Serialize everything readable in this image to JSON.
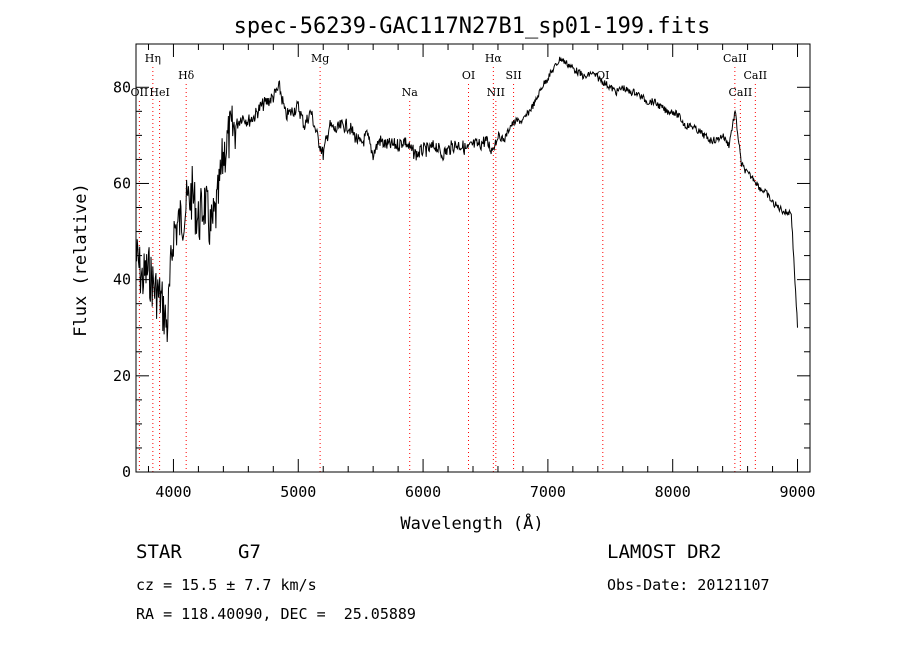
{
  "chart_data": {
    "type": "line",
    "title": "spec-56239-GAC117N27B1_sp01-199.fits",
    "xlabel": "Wavelength (Å)",
    "ylabel": "Flux (relative)",
    "xlim": [
      3700,
      9100
    ],
    "ylim": [
      0,
      89
    ],
    "xticks": [
      4000,
      5000,
      6000,
      7000,
      8000,
      9000
    ],
    "yticks": [
      0,
      20,
      40,
      60,
      80
    ],
    "grid": false,
    "legend": "none",
    "line_color": "#000000",
    "marker_color": "#ff0000",
    "series": [
      {
        "x": [
          3700,
          3750,
          3800,
          3850,
          3900,
          3950,
          4000,
          4050,
          4100,
          4150,
          4200,
          4250,
          4300,
          4350,
          4400,
          4450,
          4500,
          4550,
          4600,
          4650,
          4700,
          4750,
          4800,
          4850,
          4900,
          4950,
          5000,
          5050,
          5100,
          5150,
          5200,
          5250,
          5300,
          5350,
          5400,
          5450,
          5500,
          5550,
          5600,
          5650,
          5700,
          5750,
          5800,
          5850,
          5900,
          5950,
          6000,
          6050,
          6100,
          6150,
          6200,
          6250,
          6300,
          6350,
          6400,
          6450,
          6500,
          6550,
          6600,
          6650,
          6700,
          6750,
          6800,
          6850,
          6900,
          6950,
          7000,
          7050,
          7100,
          7150,
          7200,
          7250,
          7300,
          7350,
          7400,
          7450,
          7500,
          7550,
          7600,
          7650,
          7700,
          7750,
          7800,
          7850,
          7900,
          7950,
          8000,
          8050,
          8100,
          8150,
          8200,
          8250,
          8300,
          8350,
          8400,
          8450,
          8500,
          8550,
          8600,
          8650,
          8700,
          8750,
          8800,
          8850,
          8900,
          8950,
          9000
        ],
        "values": [
          45,
          40,
          42,
          38,
          36,
          30,
          50,
          52,
          55,
          58,
          52,
          56,
          50,
          55,
          66,
          70,
          72,
          74,
          73,
          74,
          76,
          77,
          78,
          80,
          74,
          75,
          76,
          72,
          75,
          70,
          66,
          72,
          71,
          72,
          72,
          70,
          68,
          70,
          66,
          69,
          68,
          68,
          68,
          69,
          67,
          66,
          67,
          67,
          68,
          66,
          67,
          68,
          68,
          67,
          68,
          68,
          69,
          67,
          70,
          69,
          72,
          73,
          73,
          75,
          77,
          80,
          82,
          84,
          86,
          85,
          84,
          83,
          82,
          83,
          82,
          81,
          80,
          79,
          80,
          79,
          79,
          78,
          77,
          77,
          76,
          75,
          75,
          74,
          72,
          72,
          71,
          70,
          69,
          69,
          70,
          68,
          75,
          64,
          62,
          61,
          59,
          58,
          56,
          55,
          54,
          54,
          30
        ]
      }
    ],
    "lines": [
      {
        "label": "OII",
        "x": 3727,
        "pos": "low"
      },
      {
        "label": "Hη",
        "x": 3835,
        "pos": "top"
      },
      {
        "label": "HeI",
        "x": 3889,
        "pos": "low"
      },
      {
        "label": "Hδ",
        "x": 4102,
        "pos": "mid"
      },
      {
        "label": "Mg",
        "x": 5175,
        "pos": "top"
      },
      {
        "label": "Na",
        "x": 5893,
        "pos": "low"
      },
      {
        "label": "OI",
        "x": 6364,
        "pos": "mid"
      },
      {
        "label": "Hα",
        "x": 6563,
        "pos": "top"
      },
      {
        "label": "NII",
        "x": 6583,
        "pos": "low"
      },
      {
        "label": "SII",
        "x": 6725,
        "pos": "mid"
      },
      {
        "label": "OI",
        "x": 7440,
        "pos": "mid"
      },
      {
        "label": "CaII",
        "x": 8498,
        "pos": "top"
      },
      {
        "label": "CaII",
        "x": 8542,
        "pos": "low"
      },
      {
        "label": "CaII",
        "x": 8662,
        "pos": "mid"
      }
    ]
  },
  "info": {
    "object_class": "STAR",
    "subclass": "G7",
    "survey": "LAMOST DR2",
    "cz": "cz = 15.5 ± 7.7 km/s",
    "obs_date": "Obs-Date: 20121107",
    "radec": "RA = 118.40090, DEC =  25.05889"
  }
}
